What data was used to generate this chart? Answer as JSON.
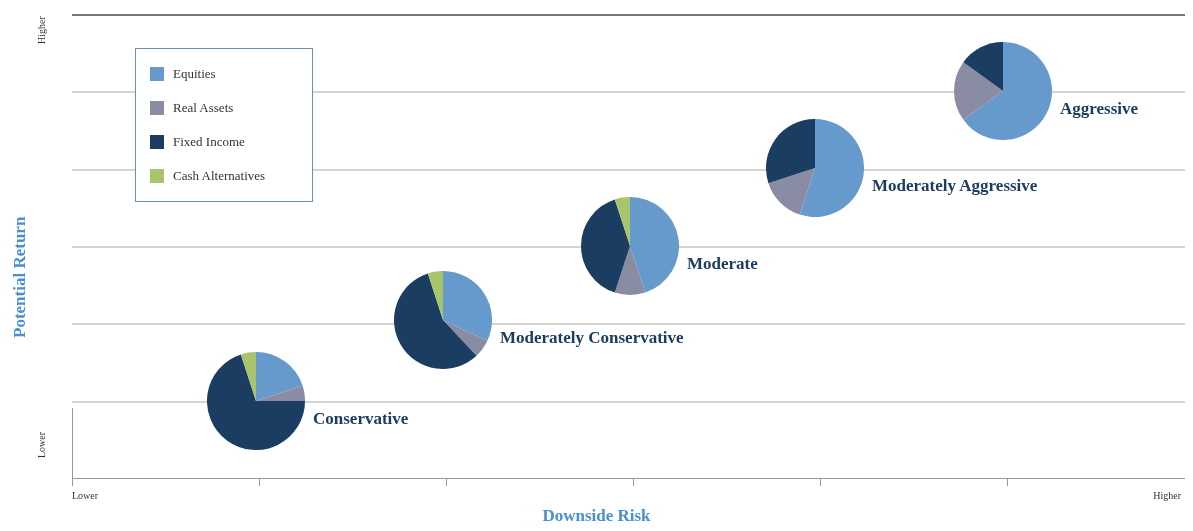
{
  "chart_data": [
    {
      "type": "other",
      "xlabel": "Downside Risk",
      "ylabel": "Potential Return",
      "annotations": [
        "Lower",
        "Higher",
        "Lower",
        "Higher"
      ]
    },
    {
      "type": "pie",
      "title": "Conservative",
      "legend": "top left",
      "categories": [
        "Equities",
        "Real Assets",
        "Fixed Income",
        "Cash Alternatives"
      ],
      "values": [
        20,
        5,
        70,
        5
      ],
      "colors": [
        "#6699cc",
        "#8a8ca3",
        "#1c3d62",
        "#a8c46c"
      ]
    },
    {
      "type": "pie",
      "title": "Moderately Conservative",
      "categories": [
        null,
        null,
        null,
        null
      ],
      "values": [
        32,
        6,
        57,
        5
      ],
      "colors": [
        "#6699cc",
        "#8a8ca3",
        "#1c3d62",
        "#a8c46c"
      ]
    },
    {
      "type": "pie",
      "title": "Moderate",
      "categories": [
        null,
        null,
        null,
        null
      ],
      "values": [
        45,
        10,
        40,
        5
      ],
      "colors": [
        "#6699cc",
        "#8a8ca3",
        "#1c3d62",
        "#a8c46c"
      ]
    },
    {
      "type": "pie",
      "title": "Moderately Aggressive",
      "categories": [
        null,
        null,
        null,
        null
      ],
      "values": [
        55,
        15,
        30,
        0
      ],
      "colors": [
        "#6699cc",
        "#8a8ca3",
        "#1c3d62",
        "#a8c46c"
      ]
    },
    {
      "type": "pie",
      "title": "Aggressive",
      "categories": [
        null,
        null,
        null,
        null
      ],
      "values": [
        65,
        20,
        15,
        0
      ],
      "colors": [
        "#6699cc",
        "#8a8ca3",
        "#1c3d62",
        "#a8c46c"
      ]
    }
  ]
}
